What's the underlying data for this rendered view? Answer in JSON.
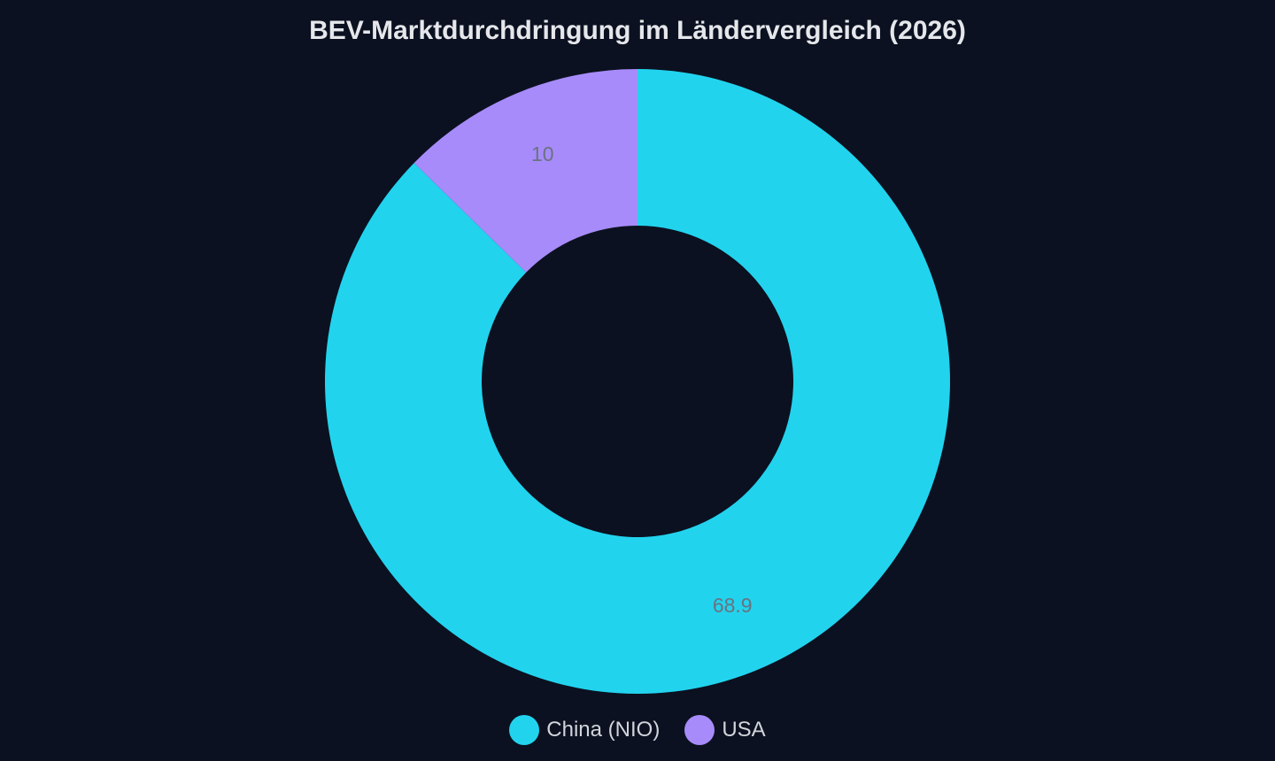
{
  "chart_data": {
    "type": "pie",
    "variant": "donut",
    "title": "BEV-Marktdurchdringung im Ländervergleich (2026)",
    "categories": [
      "China (NIO)",
      "USA"
    ],
    "values": [
      68.9,
      10
    ],
    "data_labels": [
      "68.9",
      "10"
    ],
    "colors": [
      "#22d3ee",
      "#a78bfa"
    ],
    "legend_position": "bottom",
    "start_angle": "top"
  },
  "colors": {
    "background": "#0b1120",
    "title": "#e5e7eb",
    "legend_text": "#d1d5db",
    "data_label": "#6b7280"
  }
}
